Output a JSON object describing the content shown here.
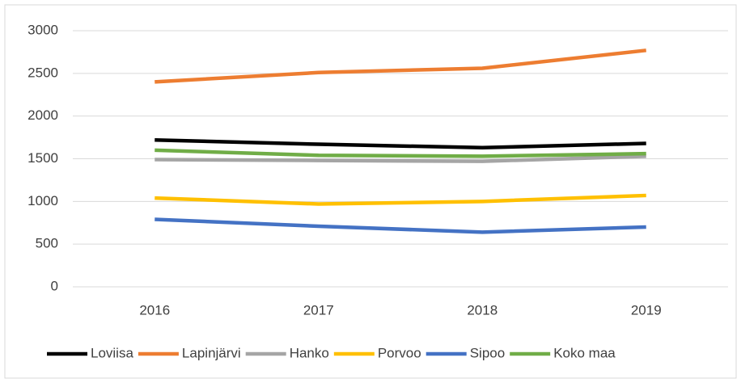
{
  "chart_data": {
    "type": "line",
    "categories": [
      "2016",
      "2017",
      "2018",
      "2019"
    ],
    "series": [
      {
        "name": "Loviisa",
        "color": "#000000",
        "values": [
          1720,
          1670,
          1630,
          1680
        ]
      },
      {
        "name": "Lapinjärvi",
        "color": "#ed7d31",
        "values": [
          2400,
          2510,
          2560,
          2770
        ]
      },
      {
        "name": "Hanko",
        "color": "#a5a5a5",
        "values": [
          1490,
          1480,
          1470,
          1530
        ]
      },
      {
        "name": "Porvoo",
        "color": "#ffc000",
        "values": [
          1040,
          970,
          1000,
          1070
        ]
      },
      {
        "name": "Sipoo",
        "color": "#4472c4",
        "values": [
          790,
          710,
          640,
          700
        ]
      },
      {
        "name": "Koko maa",
        "color": "#70ad47",
        "values": [
          1600,
          1540,
          1530,
          1560
        ]
      }
    ],
    "ylim": [
      0,
      3000
    ],
    "yticks": [
      0,
      500,
      1000,
      1500,
      2000,
      2500,
      3000
    ],
    "grid": true,
    "legend": "bottom"
  }
}
